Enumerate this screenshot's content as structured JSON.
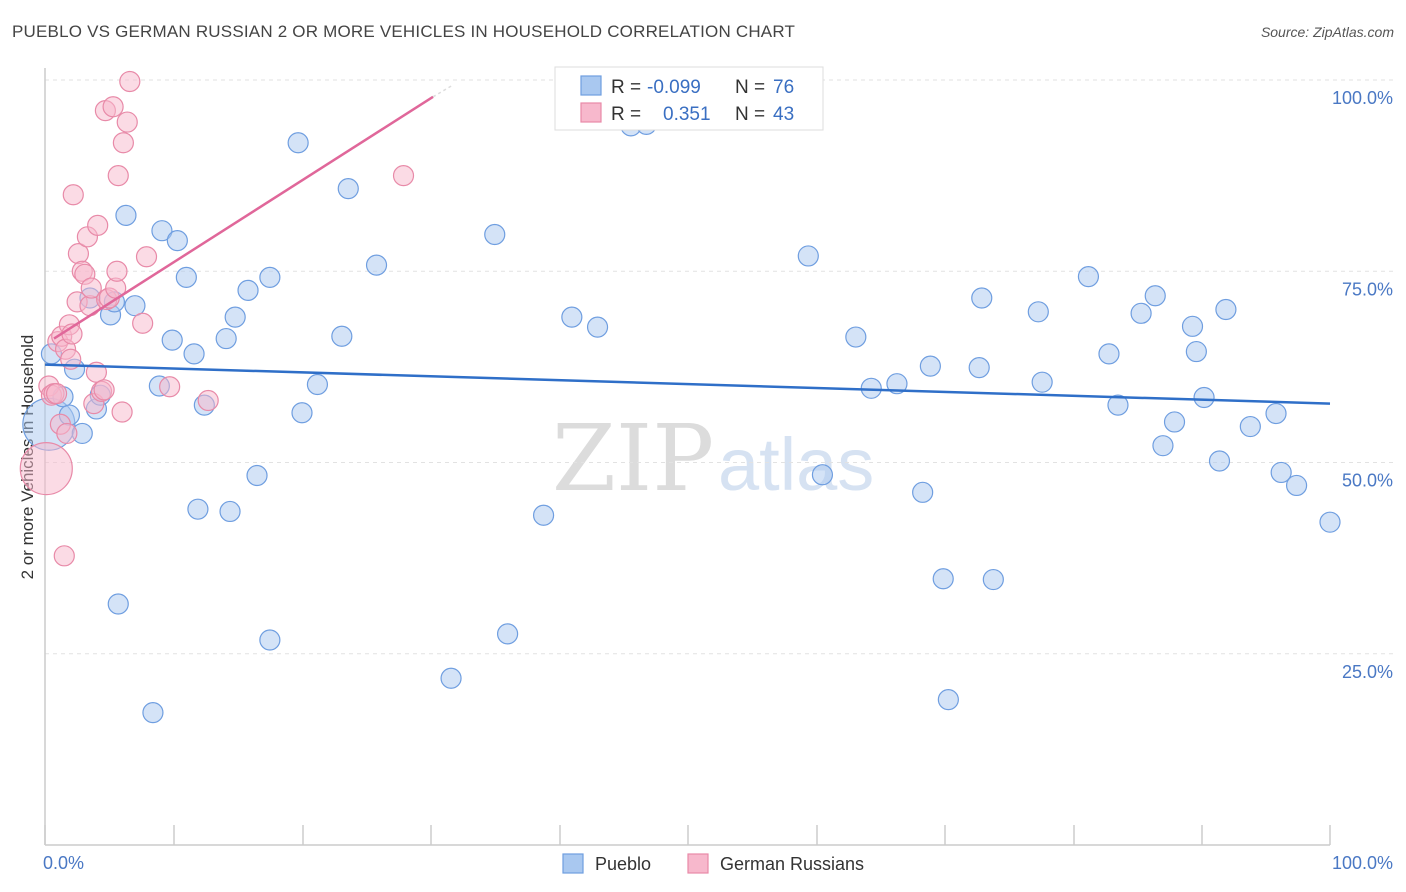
{
  "title": "PUEBLO VS GERMAN RUSSIAN 2 OR MORE VEHICLES IN HOUSEHOLD CORRELATION CHART",
  "source": "Source: ZipAtlas.com",
  "watermark": {
    "zip": "ZIP",
    "atlas": "atlas"
  },
  "legend_box": {
    "rows": [
      {
        "r_label": "R =",
        "r_value": "-0.099",
        "n_label": "N =",
        "n_value": "76",
        "color": "#a9c8f0",
        "stroke": "#6f9ee0"
      },
      {
        "r_label": "R =",
        "r_value": "0.351",
        "n_label": "N =",
        "n_value": "43",
        "color": "#f7b8cc",
        "stroke": "#e88aa8"
      }
    ]
  },
  "bottom_legend": [
    {
      "label": "Pueblo",
      "color": "#a9c8f0",
      "stroke": "#6f9ee0"
    },
    {
      "label": "German Russians",
      "color": "#f7b8cc",
      "stroke": "#e88aa8"
    }
  ],
  "chart_data": {
    "type": "scatter",
    "title": "PUEBLO VS GERMAN RUSSIAN 2 OR MORE VEHICLES IN HOUSEHOLD CORRELATION CHART",
    "xlabel": "",
    "ylabel": "2 or more Vehicles in Household",
    "xlim": [
      0,
      100
    ],
    "ylim": [
      0,
      100
    ],
    "x_tick_labels": [
      "0.0%",
      "100.0%"
    ],
    "y_ticks": [
      {
        "value": 100,
        "label": "100.0%"
      },
      {
        "value": 75,
        "label": "75.0%"
      },
      {
        "value": 50,
        "label": "50.0%"
      },
      {
        "value": 25,
        "label": "25.0%"
      }
    ],
    "grid": true,
    "series": [
      {
        "name": "Pueblo",
        "color": "#a9c8f0",
        "stroke": "#6f9ee0",
        "trend": {
          "color": "#2f6fc8",
          "x1": 0,
          "y1": 62.8,
          "x2": 100,
          "y2": 57.7
        },
        "points": [
          [
            0.3,
            55.0,
            1.0
          ],
          [
            0.5,
            64.2,
            0.6
          ],
          [
            1.4,
            58.6,
            0.6
          ],
          [
            1.9,
            56.2,
            0.6
          ],
          [
            2.3,
            62.2,
            0.6
          ],
          [
            2.9,
            53.8,
            0.6
          ],
          [
            3.5,
            71.5,
            0.6
          ],
          [
            4.0,
            57.0,
            0.6
          ],
          [
            4.3,
            58.8,
            0.6
          ],
          [
            5.1,
            69.3,
            0.6
          ],
          [
            5.4,
            71.0,
            0.6
          ],
          [
            5.7,
            31.5,
            0.6
          ],
          [
            6.3,
            82.3,
            0.6
          ],
          [
            7.0,
            70.5,
            0.6
          ],
          [
            8.4,
            17.3,
            0.6
          ],
          [
            8.9,
            60.0,
            0.6
          ],
          [
            9.1,
            80.3,
            0.6
          ],
          [
            9.9,
            66.0,
            0.6
          ],
          [
            10.3,
            79.0,
            0.6
          ],
          [
            11.0,
            74.2,
            0.6
          ],
          [
            11.6,
            64.2,
            0.6
          ],
          [
            11.9,
            43.9,
            0.6
          ],
          [
            12.4,
            57.5,
            0.6
          ],
          [
            14.1,
            66.2,
            0.6
          ],
          [
            14.4,
            43.6,
            0.6
          ],
          [
            14.8,
            69.0,
            0.6
          ],
          [
            15.8,
            72.5,
            0.6
          ],
          [
            16.5,
            48.3,
            0.6
          ],
          [
            17.5,
            74.2,
            0.6
          ],
          [
            17.5,
            26.8,
            0.6
          ],
          [
            19.7,
            91.8,
            0.6
          ],
          [
            20.0,
            56.5,
            0.6
          ],
          [
            21.2,
            60.2,
            0.6
          ],
          [
            23.1,
            66.5,
            0.6
          ],
          [
            23.6,
            85.8,
            0.6
          ],
          [
            25.8,
            75.8,
            0.6
          ],
          [
            31.6,
            21.8,
            0.6
          ],
          [
            35.0,
            79.8,
            0.6
          ],
          [
            36.0,
            27.6,
            0.6
          ],
          [
            38.8,
            43.1,
            0.6
          ],
          [
            41.0,
            69.0,
            0.6
          ],
          [
            43.0,
            67.7,
            0.6
          ],
          [
            45.6,
            94.0,
            0.6
          ],
          [
            46.8,
            94.2,
            0.6
          ],
          [
            59.4,
            77.0,
            0.6
          ],
          [
            60.5,
            48.4,
            0.6
          ],
          [
            63.1,
            66.4,
            0.6
          ],
          [
            64.3,
            59.7,
            0.6
          ],
          [
            66.3,
            60.3,
            0.6
          ],
          [
            68.3,
            46.1,
            0.6
          ],
          [
            68.9,
            62.6,
            0.6
          ],
          [
            69.9,
            34.8,
            0.6
          ],
          [
            70.3,
            19.0,
            0.6
          ],
          [
            72.7,
            62.4,
            0.6
          ],
          [
            72.9,
            71.5,
            0.6
          ],
          [
            73.8,
            34.7,
            0.6
          ],
          [
            77.3,
            69.7,
            0.6
          ],
          [
            77.6,
            60.5,
            0.6
          ],
          [
            81.2,
            74.3,
            0.6
          ],
          [
            82.8,
            64.2,
            0.6
          ],
          [
            83.5,
            57.5,
            0.6
          ],
          [
            85.3,
            69.5,
            0.6
          ],
          [
            86.4,
            71.8,
            0.6
          ],
          [
            87.0,
            52.2,
            0.6
          ],
          [
            87.9,
            55.3,
            0.6
          ],
          [
            89.3,
            67.8,
            0.6
          ],
          [
            89.6,
            64.5,
            0.6
          ],
          [
            90.2,
            58.5,
            0.6
          ],
          [
            91.4,
            50.2,
            0.6
          ],
          [
            91.9,
            70.0,
            0.6
          ],
          [
            93.8,
            54.7,
            0.6
          ],
          [
            95.8,
            56.4,
            0.6
          ],
          [
            96.2,
            48.7,
            0.6
          ],
          [
            97.4,
            47.0,
            0.6
          ],
          [
            100.0,
            42.2,
            0.6
          ]
        ]
      },
      {
        "name": "German Russians",
        "color": "#f7b8cc",
        "stroke": "#e88aa8",
        "trend": {
          "color": "#e0679a",
          "x1": 0.7,
          "y1": 66.2,
          "x2": 30.2,
          "y2": 97.8,
          "dash_x2": 31.7,
          "dash_y2": 99.3
        },
        "points": [
          [
            0.1,
            49.2,
            1.0
          ],
          [
            0.3,
            60.0,
            0.6
          ],
          [
            0.5,
            58.8,
            0.6
          ],
          [
            0.7,
            59.0,
            0.6
          ],
          [
            1.0,
            65.8,
            0.6
          ],
          [
            1.2,
            55.0,
            0.6
          ],
          [
            1.3,
            66.5,
            0.6
          ],
          [
            1.5,
            37.8,
            0.6
          ],
          [
            1.6,
            64.8,
            0.6
          ],
          [
            1.7,
            53.8,
            0.6
          ],
          [
            1.9,
            68.0,
            0.6
          ],
          [
            2.0,
            63.5,
            0.6
          ],
          [
            2.1,
            66.8,
            0.6
          ],
          [
            2.2,
            85.0,
            0.6
          ],
          [
            2.5,
            71.0,
            0.6
          ],
          [
            2.6,
            77.3,
            0.6
          ],
          [
            2.9,
            75.0,
            0.6
          ],
          [
            3.1,
            74.6,
            0.6
          ],
          [
            3.3,
            79.5,
            0.6
          ],
          [
            3.5,
            70.5,
            0.6
          ],
          [
            3.6,
            72.8,
            0.6
          ],
          [
            3.8,
            57.7,
            0.6
          ],
          [
            4.0,
            61.8,
            0.6
          ],
          [
            4.1,
            81.0,
            0.6
          ],
          [
            4.4,
            59.3,
            0.6
          ],
          [
            4.6,
            59.5,
            0.6
          ],
          [
            4.7,
            96.0,
            0.6
          ],
          [
            4.8,
            71.3,
            0.6
          ],
          [
            5.0,
            71.5,
            0.6
          ],
          [
            5.3,
            96.5,
            0.6
          ],
          [
            5.5,
            72.8,
            0.6
          ],
          [
            5.6,
            75.0,
            0.6
          ],
          [
            5.7,
            87.5,
            0.6
          ],
          [
            6.0,
            56.6,
            0.6
          ],
          [
            6.1,
            91.8,
            0.6
          ],
          [
            6.4,
            94.5,
            0.6
          ],
          [
            6.6,
            99.8,
            0.6
          ],
          [
            7.6,
            68.2,
            0.6
          ],
          [
            7.9,
            76.9,
            0.6
          ],
          [
            9.7,
            59.9,
            0.6
          ],
          [
            12.7,
            58.1,
            0.6
          ],
          [
            27.9,
            87.5,
            0.6
          ],
          [
            0.9,
            59.0,
            0.6
          ]
        ]
      }
    ]
  }
}
